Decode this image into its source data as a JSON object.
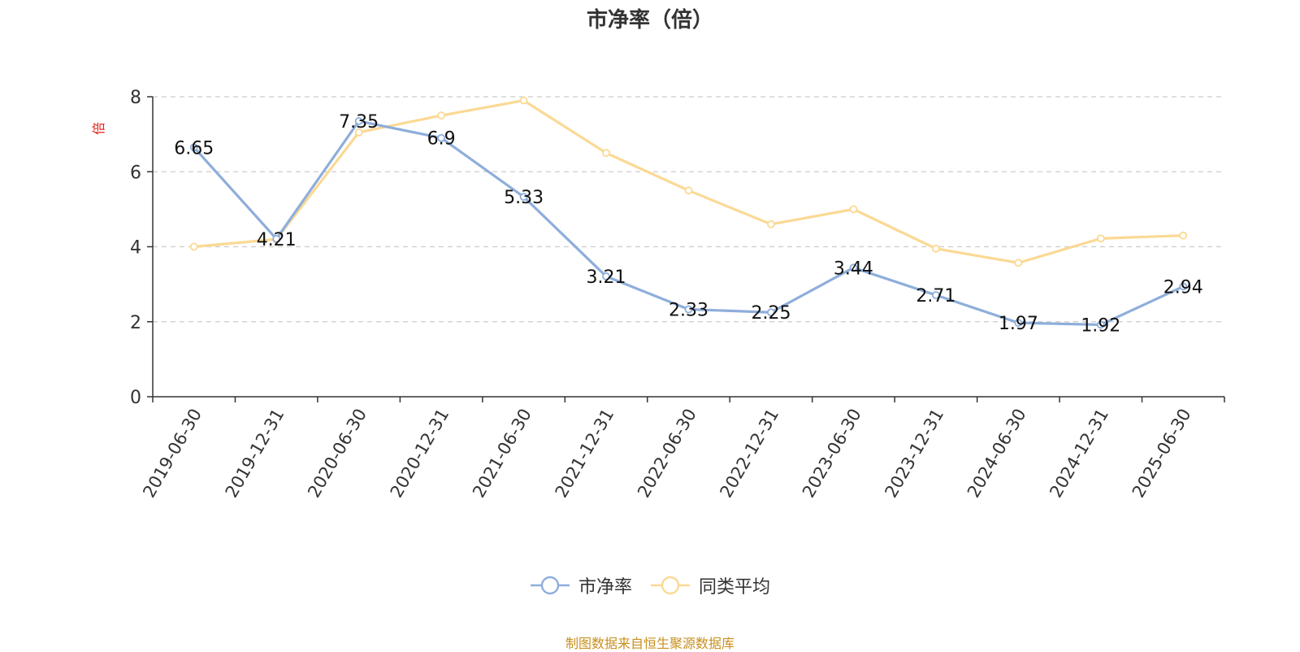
{
  "page": {
    "title": "市净率（倍）",
    "source_note": "制图数据来自恒生聚源数据库"
  },
  "colors": {
    "series_pb": "#8eaedb",
    "series_peer": "#fbd994",
    "unit_label": "#e0201a",
    "source_note": "#c8901f",
    "axis": "#333333",
    "grid": "#cccccc"
  },
  "chart_data": {
    "type": "line",
    "title": "市净率（倍）",
    "ylabel": "倍",
    "xlabel": "",
    "ylim": [
      0,
      8
    ],
    "yticks": [
      0,
      2,
      4,
      6,
      8
    ],
    "grid": true,
    "grid_style": "dashed",
    "legend_position": "bottom-center",
    "categories": [
      "2019-06-30",
      "2019-12-31",
      "2020-06-30",
      "2020-12-31",
      "2021-06-30",
      "2021-12-31",
      "2022-06-30",
      "2022-12-31",
      "2023-06-30",
      "2023-12-31",
      "2024-06-30",
      "2024-12-31",
      "2025-06-30"
    ],
    "series": [
      {
        "name": "市净率",
        "color": "#8eaedb",
        "show_labels": true,
        "values": [
          6.65,
          4.21,
          7.35,
          6.9,
          5.33,
          3.21,
          2.33,
          2.25,
          3.44,
          2.71,
          1.97,
          1.92,
          2.94
        ]
      },
      {
        "name": "同类平均",
        "color": "#fbd994",
        "show_labels": false,
        "values": [
          4.0,
          4.2,
          7.05,
          7.5,
          7.9,
          6.5,
          5.5,
          4.6,
          5.0,
          3.95,
          3.57,
          4.22,
          4.3
        ]
      }
    ]
  }
}
